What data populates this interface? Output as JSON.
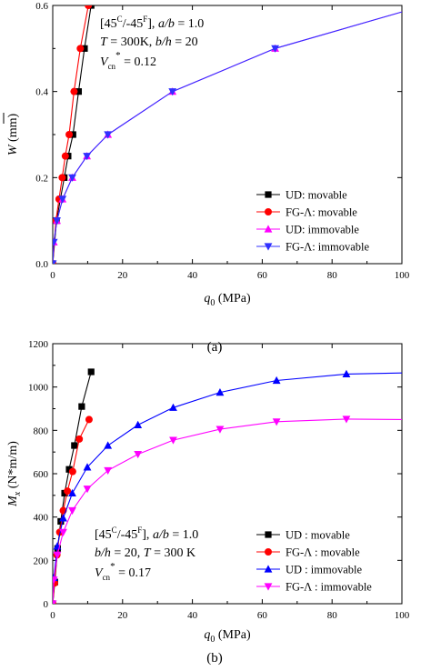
{
  "chart_data": [
    {
      "panel": "a",
      "type": "line",
      "caption": "(a)",
      "xlabel_symbol": "q",
      "xlabel_sub": "0",
      "xlabel_unit": " (MPa)",
      "ylabel_symbol": "W",
      "ylabel_unit": " (mm)",
      "xlim": [
        0,
        100
      ],
      "ylim": [
        0,
        0.6
      ],
      "xticks": [
        0,
        20,
        40,
        60,
        80,
        100
      ],
      "yticks": [
        0.0,
        0.2,
        0.4,
        0.6
      ],
      "ytick_labels": [
        "0.0",
        "0.2",
        "0.4",
        "0.6"
      ],
      "xtick_labels": [
        "0",
        "20",
        "40",
        "60",
        "80",
        "100"
      ],
      "legend_position": "bottom-right",
      "annotation": {
        "line1_parts": [
          "[45",
          "C",
          "/-45",
          "F",
          "], ",
          "a/b",
          " = 1.0"
        ],
        "line2_parts": [
          "T",
          " = 300K, ",
          "b/h",
          " = 20"
        ],
        "line3_parts": [
          "V",
          "cn",
          "*",
          " = 0.12"
        ]
      },
      "series": [
        {
          "name": "UD: movable",
          "color": "#000000",
          "marker": "square",
          "x": [
            0.0,
            1.1,
            2.2,
            3.3,
            4.4,
            5.8,
            7.4,
            9.1,
            11.0
          ],
          "y": [
            0.0,
            0.1,
            0.15,
            0.2,
            0.25,
            0.3,
            0.4,
            0.5,
            0.6
          ]
        },
        {
          "name": "FG-Λ: movable",
          "color": "#ff0000",
          "marker": "circle",
          "x": [
            0.0,
            0.9,
            1.8,
            2.7,
            3.6,
            4.7,
            6.1,
            7.9,
            10.2
          ],
          "y": [
            0.0,
            0.1,
            0.15,
            0.2,
            0.25,
            0.3,
            0.4,
            0.5,
            0.6
          ]
        },
        {
          "name": "UD: immovable",
          "color": "#ff00ff",
          "marker": "triangle-up",
          "x": [
            0.0,
            0.3,
            1.2,
            2.8,
            5.6,
            9.8,
            15.8,
            34.3,
            63.7,
            100.0
          ],
          "y": [
            0.0,
            0.05,
            0.1,
            0.15,
            0.2,
            0.25,
            0.3,
            0.4,
            0.5,
            0.585
          ]
        },
        {
          "name": "FG-Λ: immovable",
          "color": "#3030ff",
          "marker": "triangle-down",
          "x": [
            0.0,
            0.3,
            1.2,
            2.8,
            5.6,
            9.8,
            15.8,
            34.3,
            63.7,
            100.0
          ],
          "y": [
            0.0,
            0.05,
            0.1,
            0.15,
            0.2,
            0.25,
            0.3,
            0.4,
            0.5,
            0.585
          ]
        }
      ]
    },
    {
      "panel": "b",
      "type": "line",
      "caption": "(b)",
      "xlabel_symbol": "q",
      "xlabel_sub": "0",
      "xlabel_unit": " (MPa)",
      "ylabel_symbol": "M",
      "ylabel_sub": "x",
      "ylabel_unit": " (N*m/m)",
      "xlim": [
        0,
        100
      ],
      "ylim": [
        0,
        1200
      ],
      "xticks": [
        0,
        20,
        40,
        60,
        80,
        100
      ],
      "yticks": [
        0,
        200,
        400,
        600,
        800,
        1000,
        1200
      ],
      "ytick_labels": [
        "0",
        "200",
        "400",
        "600",
        "800",
        "1000",
        "1200"
      ],
      "xtick_labels": [
        "0",
        "20",
        "40",
        "60",
        "80",
        "100"
      ],
      "legend_position": "bottom-right",
      "annotation": {
        "line1_parts": [
          "[45",
          "C",
          "/-45",
          "F",
          "], ",
          "a/b",
          " = 1.0"
        ],
        "line2_parts": [
          "b/h",
          " = 20, ",
          "T",
          " = 300 K"
        ],
        "line3_parts": [
          "V",
          "cn",
          "*",
          " = 0.17"
        ]
      },
      "series": [
        {
          "name": "UD : movable",
          "color": "#000000",
          "marker": "square",
          "x": [
            0.0,
            0.6,
            1.4,
            2.3,
            3.4,
            4.7,
            6.2,
            8.3,
            11.0
          ],
          "y": [
            0,
            100,
            255,
            380,
            510,
            620,
            730,
            910,
            1070
          ]
        },
        {
          "name": "FG-Λ : movable",
          "color": "#ff0000",
          "marker": "circle",
          "x": [
            0.0,
            0.5,
            1.2,
            2.0,
            3.0,
            4.2,
            5.7,
            7.6,
            10.4
          ],
          "y": [
            0,
            95,
            225,
            330,
            430,
            520,
            610,
            760,
            850
          ]
        },
        {
          "name": "UD : immovable",
          "color": "#0000ff",
          "marker": "triangle-up",
          "x": [
            0.0,
            0.3,
            1.3,
            3.0,
            5.6,
            9.9,
            15.8,
            24.4,
            34.5,
            47.9,
            64.1,
            84.1,
            100.0
          ],
          "y": [
            0,
            120,
            265,
            395,
            510,
            630,
            730,
            825,
            905,
            975,
            1030,
            1060,
            1065
          ]
        },
        {
          "name": "FG-Λ : immovable",
          "color": "#ff00ff",
          "marker": "triangle-down",
          "x": [
            0.0,
            0.3,
            1.3,
            3.0,
            5.6,
            9.9,
            15.8,
            24.4,
            34.5,
            47.9,
            64.1,
            84.1,
            100.0
          ],
          "y": [
            0,
            110,
            225,
            330,
            430,
            530,
            615,
            690,
            755,
            805,
            840,
            852,
            850
          ]
        }
      ]
    }
  ]
}
